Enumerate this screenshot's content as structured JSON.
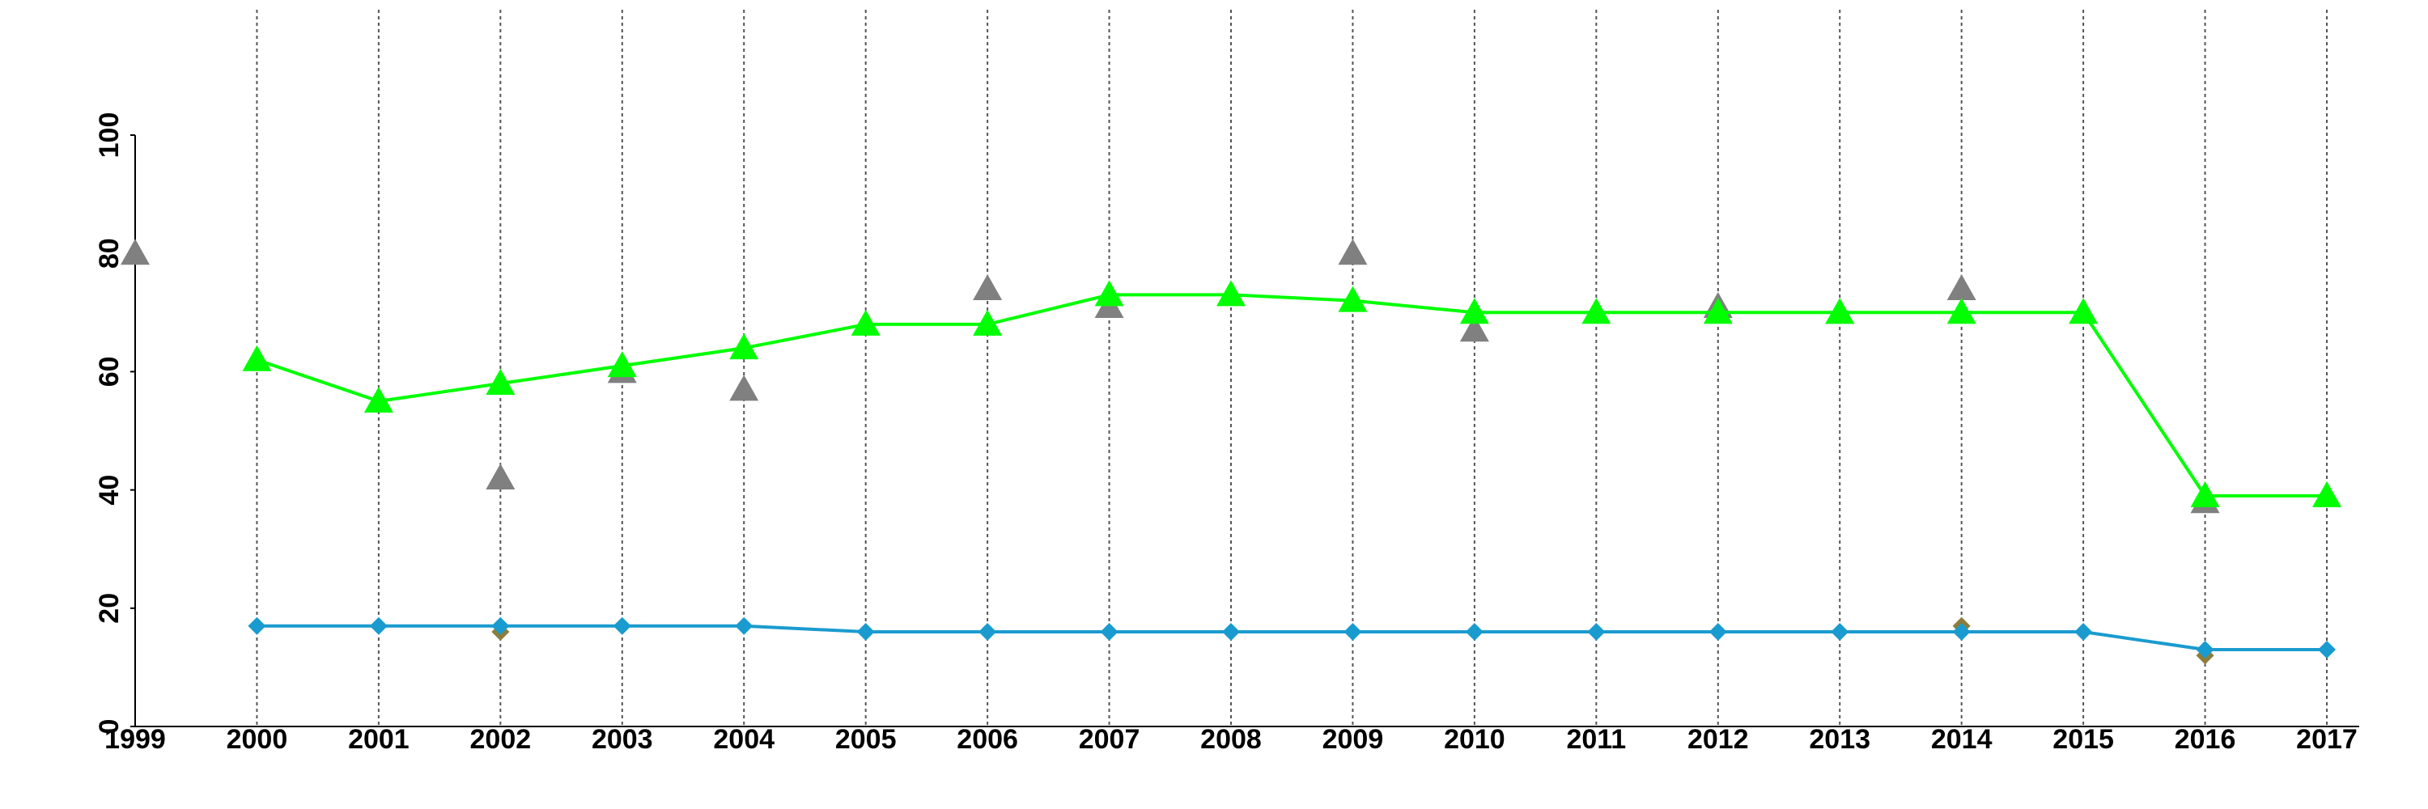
{
  "chart_data": {
    "type": "line",
    "x": [
      1999,
      2000,
      2001,
      2002,
      2003,
      2004,
      2005,
      2006,
      2007,
      2008,
      2009,
      2010,
      2011,
      2012,
      2013,
      2014,
      2015,
      2016,
      2017
    ],
    "xlim": [
      1999,
      2017
    ],
    "xticks": [
      1999,
      2000,
      2001,
      2002,
      2003,
      2004,
      2005,
      2006,
      2007,
      2008,
      2009,
      2010,
      2011,
      2012,
      2013,
      2014,
      2015,
      2016,
      2017
    ],
    "ylim": [
      0,
      100
    ],
    "yticks": [
      0,
      20,
      40,
      60,
      80,
      100
    ],
    "grid": "x",
    "series": [
      {
        "color": "#808080",
        "marker": "triangle",
        "line": false,
        "values": [
          80,
          null,
          null,
          42,
          60,
          57,
          null,
          74,
          71,
          null,
          80,
          67,
          null,
          71,
          70,
          74,
          null,
          38,
          null
        ]
      },
      {
        "color": "#00ff00",
        "marker": "triangle",
        "line": true,
        "values": [
          null,
          62,
          55,
          58,
          61,
          64,
          68,
          68,
          73,
          73,
          72,
          70,
          70,
          70,
          70,
          70,
          70,
          39,
          39
        ]
      },
      {
        "color": "#8b7d3a",
        "marker": "diamond",
        "line": false,
        "values": [
          null,
          null,
          null,
          16,
          null,
          null,
          null,
          null,
          null,
          null,
          null,
          null,
          null,
          null,
          null,
          17,
          null,
          12,
          null
        ]
      },
      {
        "color": "#1a9bcf",
        "marker": "diamond",
        "line": true,
        "values": [
          null,
          17,
          17,
          17,
          17,
          17,
          16,
          16,
          16,
          16,
          16,
          16,
          16,
          16,
          16,
          16,
          16,
          13,
          13
        ]
      }
    ]
  }
}
